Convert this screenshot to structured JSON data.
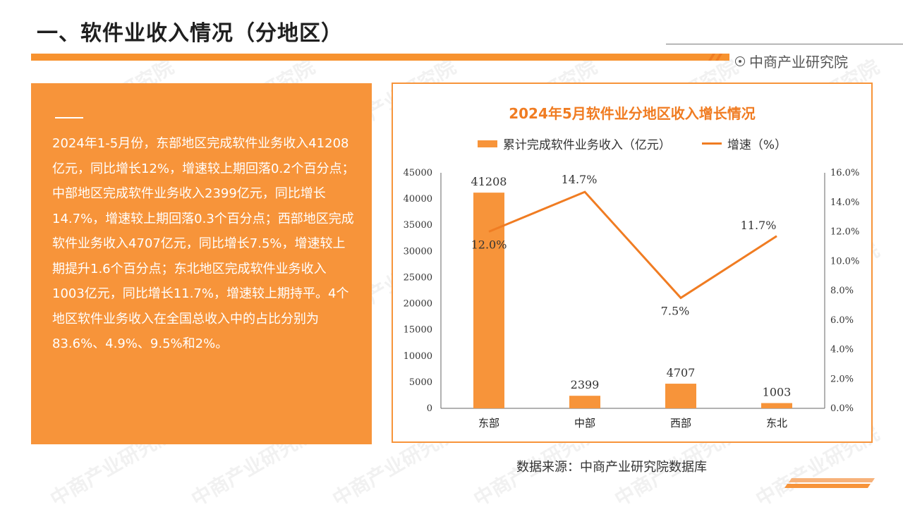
{
  "header": {
    "title": "一、软件业收入情况（分地区）",
    "brand": "中商产业研究院",
    "accent_color": "#f7943a"
  },
  "summary": {
    "text": "2024年1-5月份，东部地区完成软件业务收入41208亿元，同比增长12%，增速较上期回落0.2个百分点；中部地区完成软件业务收入2399亿元，同比增长14.7%，增速较上期回落0.3个百分点；西部地区完成软件业务收入4707亿元，同比增长7.5%，增速较上期提升1.6个百分点；东北地区完成软件业务收入1003亿元，同比增长11.7%，增速较上期持平。4个地区软件业务收入在全国总收入中的占比分别为83.6%、4.9%、9.5%和2%。"
  },
  "source": "数据来源：中商产业研究院数据库",
  "watermark": "中商产业研究院",
  "chart_data": {
    "type": "bar",
    "title": "2024年5月软件业分地区收入增长情况",
    "categories": [
      "东部",
      "中部",
      "西部",
      "东北"
    ],
    "series": [
      {
        "name": "累计完成软件业务收入（亿元）",
        "type": "bar",
        "axis": "left",
        "values": [
          41208,
          2399,
          4707,
          1003
        ],
        "labels": [
          "41208",
          "2399",
          "4707",
          "1003"
        ],
        "color": "#f7943a"
      },
      {
        "name": "增速（%）",
        "type": "line",
        "axis": "right",
        "values": [
          12.0,
          14.7,
          7.5,
          11.7
        ],
        "labels": [
          "12.0%",
          "14.7%",
          "7.5%",
          "11.7%"
        ],
        "color": "#f07c22"
      }
    ],
    "ylim_left": [
      0,
      45000
    ],
    "yticks_left": [
      "0",
      "5000",
      "10000",
      "15000",
      "20000",
      "25000",
      "30000",
      "35000",
      "40000",
      "45000"
    ],
    "ylim_right": [
      0,
      16
    ],
    "yticks_right": [
      "0.0%",
      "2.0%",
      "4.0%",
      "6.0%",
      "8.0%",
      "10.0%",
      "12.0%",
      "14.0%",
      "16.0%"
    ],
    "legend": "top-center",
    "grid": false
  }
}
